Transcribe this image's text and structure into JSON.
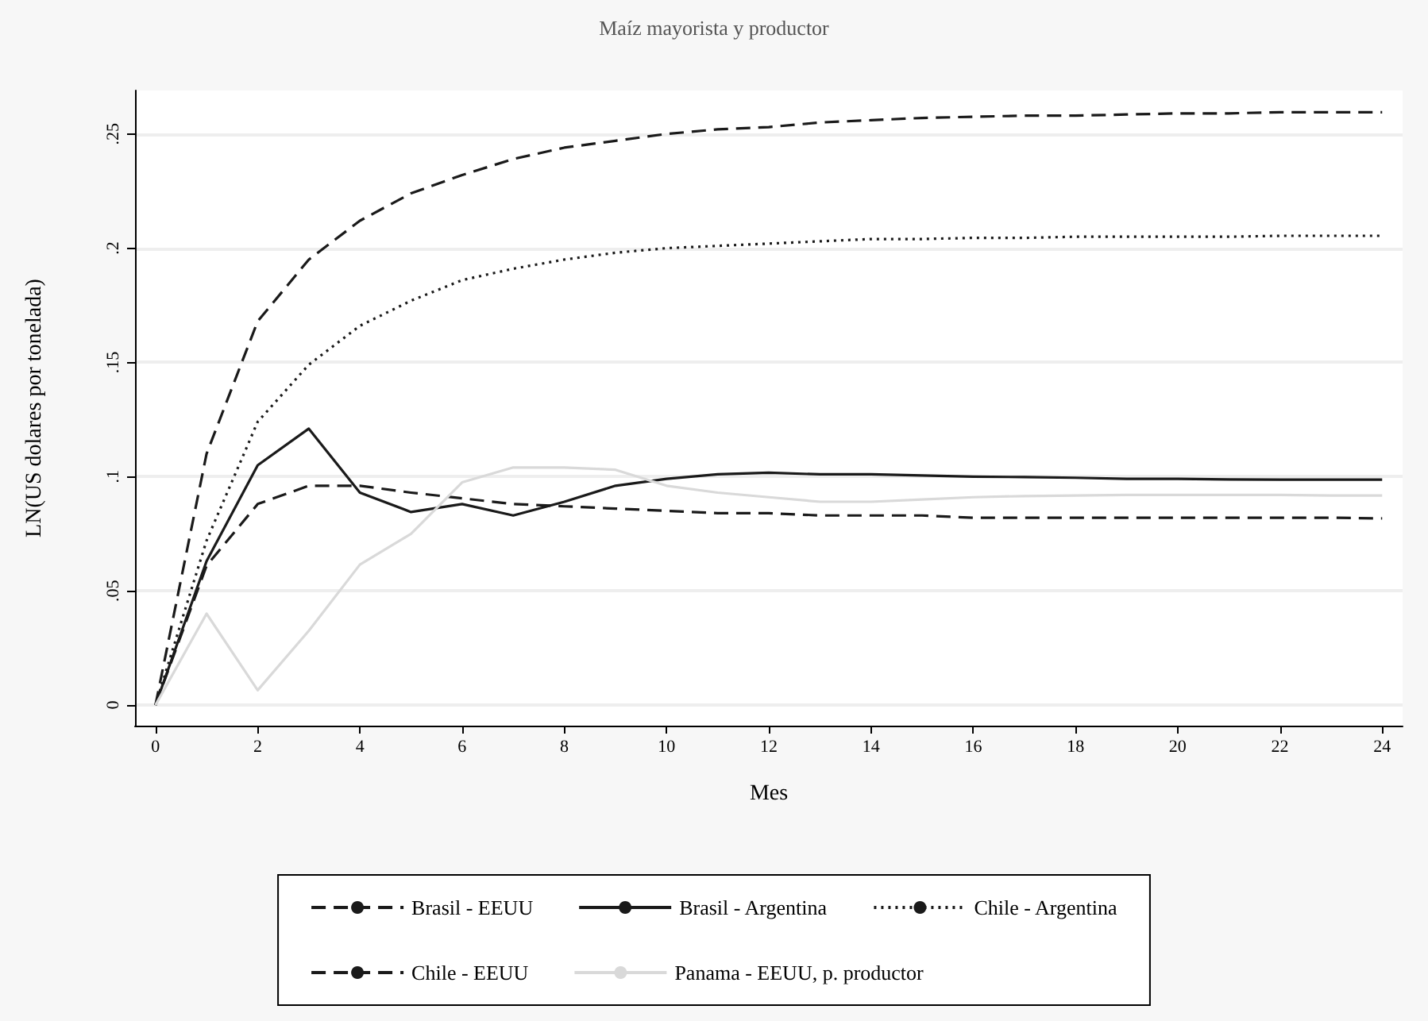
{
  "chart_data": {
    "type": "line",
    "title": "Maíz mayorista y productor",
    "xlabel": "Mes",
    "ylabel": "LN(US dolares por tonelada)",
    "x": [
      0,
      1,
      2,
      3,
      4,
      5,
      6,
      7,
      8,
      9,
      10,
      11,
      12,
      13,
      14,
      15,
      16,
      17,
      18,
      19,
      20,
      21,
      22,
      23,
      24
    ],
    "series": [
      {
        "name": "Brasil - EEUU",
        "color": "#1a1a1a",
        "line_style": "dashed",
        "values": [
          0,
          0.061,
          0.088,
          0.096,
          0.096,
          0.093,
          0.0905,
          0.088,
          0.087,
          0.086,
          0.085,
          0.084,
          0.084,
          0.083,
          0.083,
          0.083,
          0.082,
          0.082,
          0.082,
          0.082,
          0.082,
          0.082,
          0.082,
          0.082,
          0.0817
        ]
      },
      {
        "name": "Brasil - Argentina",
        "color": "#1a1a1a",
        "line_style": "solid",
        "values": [
          0,
          0.063,
          0.105,
          0.121,
          0.093,
          0.0845,
          0.088,
          0.083,
          0.089,
          0.096,
          0.099,
          0.101,
          0.1017,
          0.101,
          0.101,
          0.1005,
          0.1,
          0.0998,
          0.0995,
          0.099,
          0.099,
          0.0988,
          0.0987,
          0.0987,
          0.0987
        ]
      },
      {
        "name": "Chile - Argentina",
        "color": "#1a1a1a",
        "line_style": "dotted",
        "values": [
          0,
          0.072,
          0.124,
          0.149,
          0.166,
          0.177,
          0.186,
          0.191,
          0.195,
          0.198,
          0.2,
          0.201,
          0.202,
          0.203,
          0.204,
          0.204,
          0.2045,
          0.2045,
          0.205,
          0.205,
          0.205,
          0.205,
          0.2054,
          0.2054,
          0.2054
        ]
      },
      {
        "name": "Chile - EEUU",
        "color": "#1a1a1a",
        "line_style": "dashed",
        "values": [
          0,
          0.11,
          0.168,
          0.195,
          0.212,
          0.224,
          0.232,
          0.239,
          0.244,
          0.247,
          0.25,
          0.252,
          0.253,
          0.255,
          0.256,
          0.257,
          0.2575,
          0.258,
          0.258,
          0.2585,
          0.259,
          0.259,
          0.2595,
          0.2595,
          0.2595
        ]
      },
      {
        "name": "Panama - EEUU, p. productor",
        "color": "#d9d9d9",
        "line_style": "solid",
        "values": [
          0,
          0.04,
          0.0065,
          0.0325,
          0.0615,
          0.075,
          0.0975,
          0.104,
          0.104,
          0.103,
          0.096,
          0.093,
          0.091,
          0.089,
          0.089,
          0.09,
          0.091,
          0.0915,
          0.0917,
          0.092,
          0.092,
          0.092,
          0.092,
          0.0917,
          0.0917
        ]
      }
    ],
    "xlim": [
      -0.4,
      24.4
    ],
    "xticks": [
      0,
      2,
      4,
      6,
      8,
      10,
      12,
      14,
      16,
      18,
      20,
      22,
      24
    ],
    "ylim": [
      -0.009,
      0.269
    ],
    "yticks": [
      0,
      {
        "value": 0.05,
        "label": ".05"
      },
      {
        "value": 0.1,
        "label": ".1"
      },
      {
        "value": 0.15,
        "label": ".15"
      },
      {
        "value": 0.2,
        "label": ".2"
      },
      {
        "value": 0.25,
        "label": ".25"
      }
    ],
    "grid": "y",
    "legend": "bottom",
    "marker": "none"
  }
}
